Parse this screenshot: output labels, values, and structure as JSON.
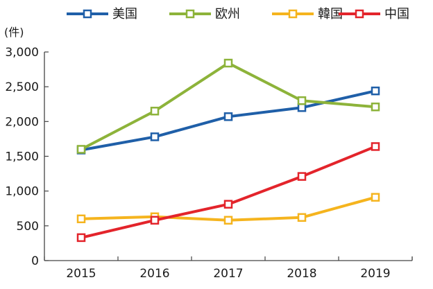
{
  "chart_data": {
    "type": "line",
    "categories": [
      "2015",
      "2016",
      "2017",
      "2018",
      "2019"
    ],
    "ylabel": "(件)",
    "ylim": [
      0,
      3000
    ],
    "yticks": [
      {
        "value": 0,
        "label": "0"
      },
      {
        "value": 500,
        "label": "500"
      },
      {
        "value": 1000,
        "label": "1,000"
      },
      {
        "value": 1500,
        "label": "1,500"
      },
      {
        "value": 2000,
        "label": "2,000"
      },
      {
        "value": 2500,
        "label": "2,500"
      },
      {
        "value": 3000,
        "label": "3,000"
      }
    ],
    "grid": false,
    "legend_position": "top",
    "series": [
      {
        "name": "美国",
        "color": "#1f5fa8",
        "values": [
          1590,
          1780,
          2070,
          2200,
          2440
        ]
      },
      {
        "name": "欧州",
        "color": "#8db33a",
        "values": [
          1600,
          2150,
          2840,
          2300,
          2210
        ]
      },
      {
        "name": "韓国",
        "color": "#f5b41e",
        "values": [
          600,
          630,
          580,
          620,
          910
        ]
      },
      {
        "name": "中国",
        "color": "#e3242b",
        "values": [
          330,
          580,
          810,
          1210,
          1640
        ]
      }
    ]
  }
}
